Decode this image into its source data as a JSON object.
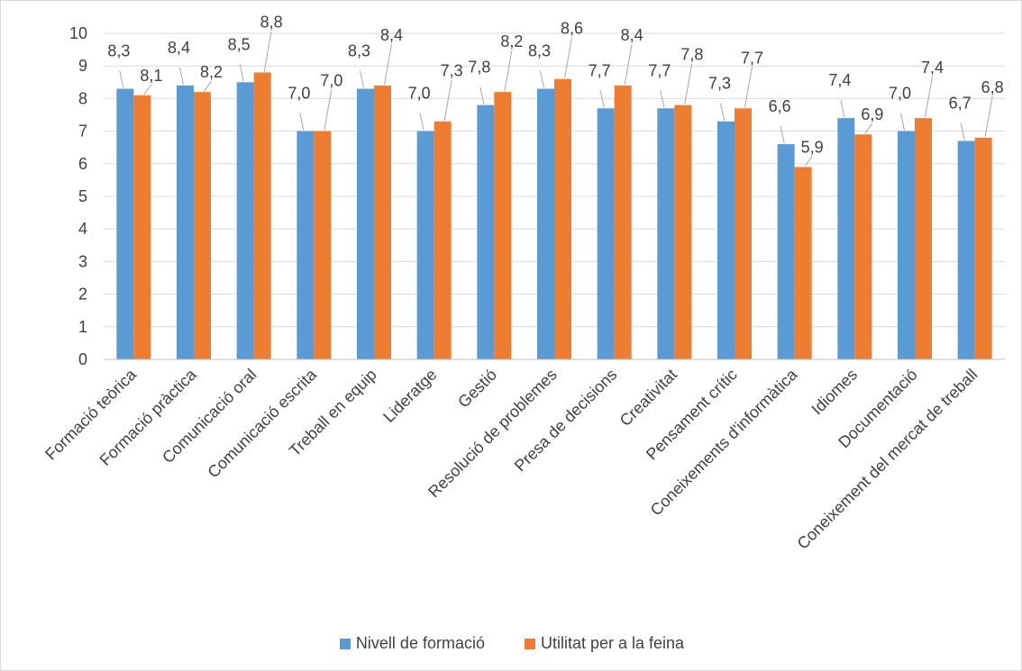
{
  "chart_data": {
    "type": "bar",
    "categories": [
      "Formació teòrica",
      "Formació pràctica",
      "Comunicació oral",
      "Comunicació escrita",
      "Treball en equip",
      "Lideratge",
      "Gestió",
      "Resolució de problemes",
      "Presa de decisions",
      "Creativitat",
      "Pensament crític",
      "Coneixements d'informàtica",
      "Idiomes",
      "Documentació",
      "Coneixement del mercat de treball"
    ],
    "series": [
      {
        "name": "Nivell de formació",
        "color": "#5b9bd5",
        "values": [
          8.3,
          8.4,
          8.5,
          7.0,
          8.3,
          7.0,
          7.8,
          8.3,
          7.7,
          7.7,
          7.3,
          6.6,
          7.4,
          7.0,
          6.7
        ],
        "labels": [
          "8,3",
          "8,4",
          "8,5",
          "7,0",
          "8,3",
          "7,0",
          "7,8",
          "8,3",
          "7,7",
          "7,7",
          "7,3",
          "6,6",
          "7,4",
          "7,0",
          "6,7"
        ]
      },
      {
        "name": "Utilitat per a la feina",
        "color": "#ed7d31",
        "values": [
          8.1,
          8.2,
          8.8,
          7.0,
          8.4,
          7.3,
          8.2,
          8.6,
          8.4,
          7.8,
          7.7,
          5.9,
          6.9,
          7.4,
          6.8
        ],
        "labels": [
          "8,1",
          "8,2",
          "8,8",
          "7,0",
          "8,4",
          "7,3",
          "8,2",
          "8,6",
          "8,4",
          "7,8",
          "7,7",
          "5,9",
          "6,9",
          "7,4",
          "6,8"
        ]
      }
    ],
    "ylim": [
      0,
      10
    ],
    "yticks": [
      "0",
      "1",
      "2",
      "3",
      "4",
      "5",
      "6",
      "7",
      "8",
      "9",
      "10"
    ],
    "grid": true,
    "legend_position": "bottom",
    "title": "",
    "xlabel": "",
    "ylabel": ""
  }
}
